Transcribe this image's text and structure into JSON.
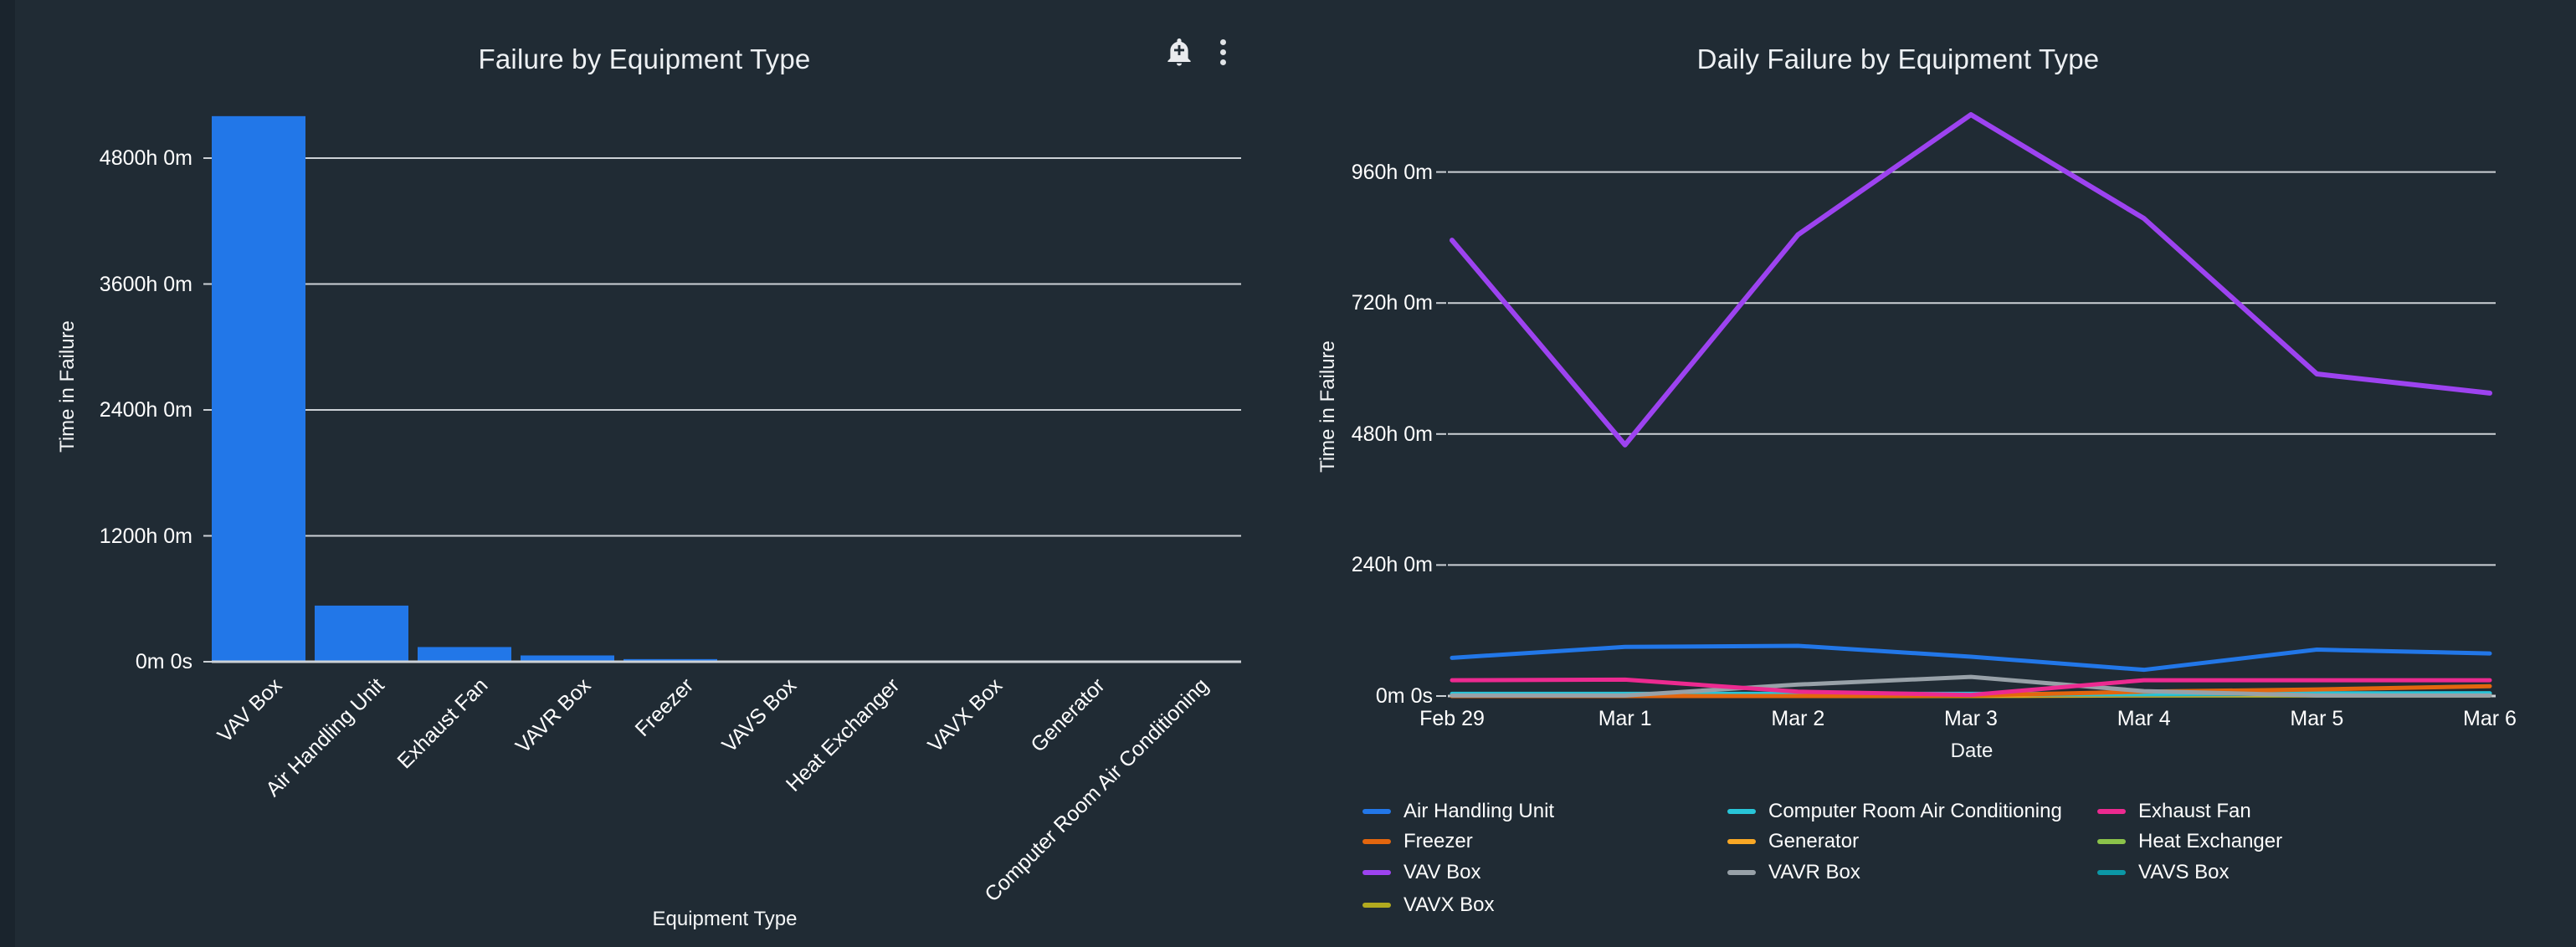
{
  "app": {
    "background": "#202b34",
    "left_strip_color": "#1a242d",
    "grid_color": "#ccd1d6",
    "text_color": "#ffffff",
    "bar_color": "#2277e8"
  },
  "toolbar": {
    "bell_icon": "add-alert-icon",
    "kebab_icon": "more-vertical-icon"
  },
  "chart_data": [
    {
      "type": "bar",
      "title": "Failure by Equipment Type",
      "xlabel": "Equipment Type",
      "ylabel": "Time in Failure",
      "categories": [
        "VAV Box",
        "Air Handling Unit",
        "Exhaust Fan",
        "VAVR Box",
        "Freezer",
        "VAVS Box",
        "Heat Exchanger",
        "VAVX Box",
        "Generator",
        "Computer Room Air Conditioning"
      ],
      "values_hours": [
        5200,
        535,
        140,
        60,
        25,
        6,
        3,
        1,
        1,
        0
      ],
      "y_ticks": [
        {
          "label": "4800h 0m",
          "value": 4800
        },
        {
          "label": "3600h 0m",
          "value": 3600
        },
        {
          "label": "2400h 0m",
          "value": 2400
        },
        {
          "label": "1200h 0m",
          "value": 1200
        },
        {
          "label": "0m 0s",
          "value": 0
        }
      ],
      "ylim": [
        0,
        5300
      ],
      "grid": "horizontal-only",
      "bar_color": "#2277e8"
    },
    {
      "type": "line",
      "title": "Daily Failure by Equipment Type",
      "xlabel": "Date",
      "ylabel": "Time in Failure",
      "x": [
        "Feb 29",
        "Mar 1",
        "Mar 2",
        "Mar 3",
        "Mar 4",
        "Mar 5",
        "Mar 6"
      ],
      "y_ticks": [
        {
          "label": "960h 0m",
          "value": 960
        },
        {
          "label": "720h 0m",
          "value": 720
        },
        {
          "label": "480h 0m",
          "value": 480
        },
        {
          "label": "240h 0m",
          "value": 240
        },
        {
          "label": "0m 0s",
          "value": 0
        }
      ],
      "ylim": [
        0,
        1080
      ],
      "grid": "horizontal-only",
      "legend_position": "bottom",
      "series": [
        {
          "name": "Air Handling Unit",
          "color": "#2277e8",
          "values_hours": [
            70,
            90,
            92,
            72,
            48,
            85,
            78
          ]
        },
        {
          "name": "Computer Room Air Conditioning",
          "color": "#28c5d8",
          "values_hours": [
            4,
            4,
            4,
            4,
            4,
            5,
            5
          ]
        },
        {
          "name": "Exhaust Fan",
          "color": "#ec2a90",
          "values_hours": [
            29,
            30,
            8,
            2,
            29,
            29,
            29
          ]
        },
        {
          "name": "Freezer",
          "color": "#e3660e",
          "values_hours": [
            0,
            0,
            0,
            1,
            8,
            12,
            18
          ]
        },
        {
          "name": "Generator",
          "color": "#f9a825",
          "values_hours": [
            0,
            0,
            0,
            1,
            2,
            3,
            4
          ]
        },
        {
          "name": "Heat Exchanger",
          "color": "#8bc34a",
          "values_hours": [
            1,
            1,
            1,
            2,
            2,
            2,
            2
          ]
        },
        {
          "name": "VAV Box",
          "color": "#9d43f0",
          "values_hours": [
            835,
            460,
            845,
            1065,
            875,
            590,
            555
          ]
        },
        {
          "name": "VAVR Box",
          "color": "#98a1a8",
          "values_hours": [
            1,
            1,
            21,
            35,
            9,
            1,
            1
          ]
        },
        {
          "name": "VAVS Box",
          "color": "#0b97a6",
          "values_hours": [
            2,
            2,
            3,
            3,
            3,
            4,
            5
          ]
        },
        {
          "name": "VAVX Box",
          "color": "#b2aa1f",
          "values_hours": [
            0,
            0,
            0,
            0,
            1,
            1,
            1
          ]
        }
      ]
    }
  ]
}
